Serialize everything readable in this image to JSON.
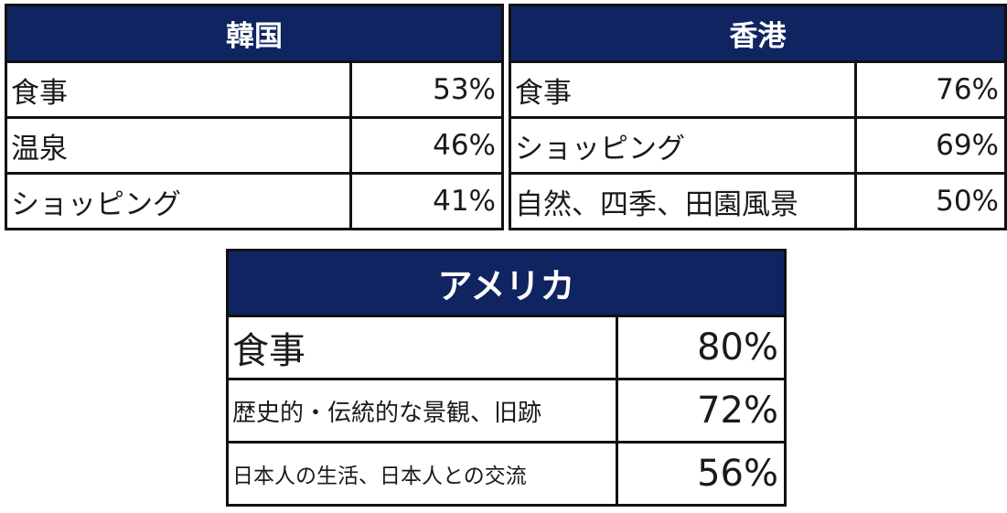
{
  "korea": {
    "title": "韓国",
    "rows": [
      {
        "label": "食事",
        "value": "53%"
      },
      {
        "label": "温泉",
        "value": "46%"
      },
      {
        "label": "ショッピング",
        "value": "41%"
      }
    ]
  },
  "hongkong": {
    "title": "香港",
    "rows": [
      {
        "label": "食事",
        "value": "76%"
      },
      {
        "label": "ショッピング",
        "value": "69%"
      },
      {
        "label": "自然、四季、田園風景",
        "value": "50%"
      }
    ]
  },
  "usa": {
    "title": "アメリカ",
    "rows": [
      {
        "label": "食事",
        "value": "80%"
      },
      {
        "label": "歴史的・伝統的な景観、旧跡",
        "value": "72%"
      },
      {
        "label": "日本人の生活、日本人との交流",
        "value": "56%"
      }
    ]
  },
  "colors": {
    "header_bg": "#0f2460",
    "header_text": "#ffffff",
    "border": "#111111"
  }
}
